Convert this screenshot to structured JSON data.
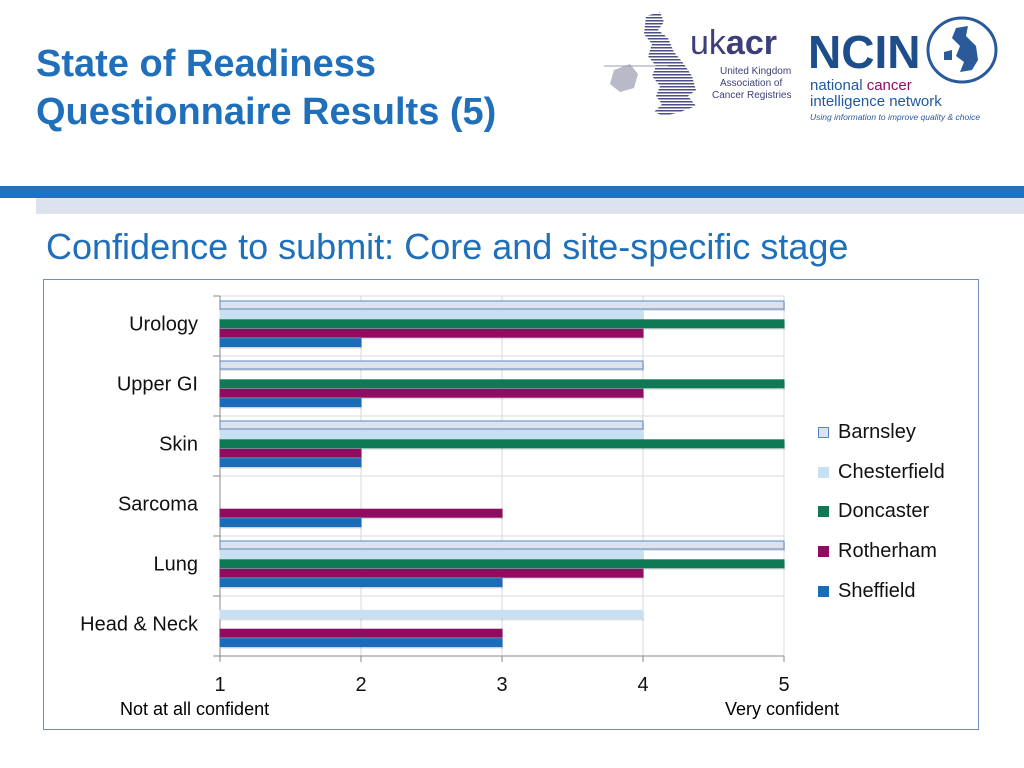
{
  "slide": {
    "title_line1": "State of Readiness",
    "title_line2": "Questionnaire Results (5)",
    "subtitle": "Confidence to submit: Core and site-specific stage"
  },
  "logos": {
    "ukacr": {
      "name": "ukacr",
      "name_prefix": "uk",
      "name_suffix": "acr",
      "line1": "United Kingdom",
      "line2": "Association of",
      "line3": "Cancer Registries"
    },
    "ncin": {
      "name": "NCIN",
      "line1_a": "national ",
      "line1_b": "cancer",
      "line2": "intelligence network",
      "tagline": "Using information to improve quality & choice"
    }
  },
  "colors": {
    "title": "#1f6fba",
    "band": "#1f72c0",
    "band_light": "#dde3ee",
    "grid": "#d9d9d9"
  },
  "chart_data": {
    "type": "bar",
    "orientation": "horizontal",
    "categories": [
      "Urology",
      "Upper GI",
      "Skin",
      "Sarcoma",
      "Lung",
      "Head & Neck"
    ],
    "series": [
      {
        "name": "Barnsley",
        "color": "#dde3ec",
        "stroke": "#5b86c2",
        "values": [
          5,
          4,
          4,
          null,
          5,
          null
        ]
      },
      {
        "name": "Chesterfield",
        "color": "#c9dff2",
        "stroke": "#c9dff2",
        "values": [
          4,
          null,
          4,
          null,
          4,
          4
        ]
      },
      {
        "name": "Doncaster",
        "color": "#0d7a55",
        "stroke": "#0d7a55",
        "values": [
          5,
          5,
          5,
          null,
          5,
          null
        ]
      },
      {
        "name": "Rotherham",
        "color": "#8e0d61",
        "stroke": "#8e0d61",
        "values": [
          4,
          4,
          2,
          3,
          4,
          3
        ]
      },
      {
        "name": "Sheffield",
        "color": "#1b6cb8",
        "stroke": "#1b6cb8",
        "values": [
          2,
          2,
          2,
          2,
          3,
          3
        ]
      }
    ],
    "xlim": [
      1,
      5
    ],
    "xticks": [
      "1",
      "2",
      "3",
      "4",
      "5"
    ],
    "x_annotations": {
      "left": "Not at all confident",
      "right": "Very confident"
    },
    "grid": true,
    "legend": "right"
  }
}
